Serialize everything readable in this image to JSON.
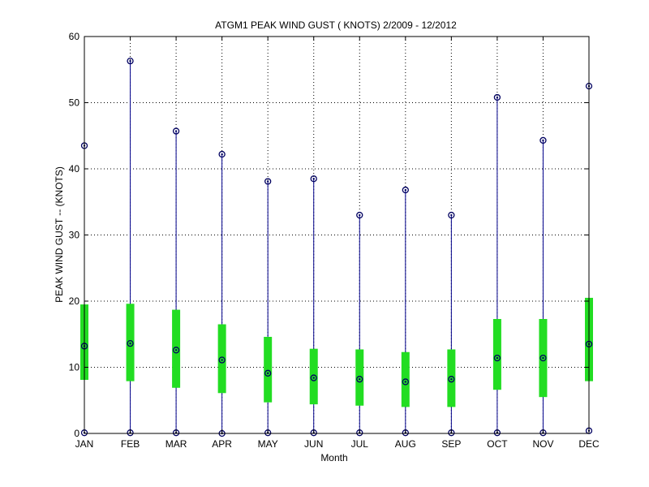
{
  "chart_data": {
    "type": "box",
    "title": "ATGM1  PEAK WIND GUST ( KNOTS) 2/2009 - 12/2012",
    "xlabel": "Month",
    "ylabel": "PEAK WIND GUST -- (KNOTS)",
    "categories": [
      "JAN",
      "FEB",
      "MAR",
      "APR",
      "MAY",
      "JUN",
      "JUL",
      "AUG",
      "SEP",
      "OCT",
      "NOV",
      "DEC"
    ],
    "ylim": [
      0,
      60
    ],
    "yticks": [
      0,
      10,
      20,
      30,
      40,
      50,
      60
    ],
    "grid": true,
    "series": [
      {
        "stat": "max",
        "values": [
          43.5,
          56.3,
          45.7,
          42.2,
          38.1,
          38.5,
          33.0,
          36.8,
          33.0,
          50.8,
          44.3,
          52.5
        ]
      },
      {
        "stat": "upper",
        "values": [
          19.5,
          19.6,
          18.7,
          16.5,
          14.6,
          12.8,
          12.7,
          12.3,
          12.7,
          17.3,
          17.3,
          20.5
        ]
      },
      {
        "stat": "mean",
        "values": [
          13.2,
          13.6,
          12.6,
          11.1,
          9.1,
          8.4,
          8.2,
          7.8,
          8.2,
          11.4,
          11.4,
          13.5
        ]
      },
      {
        "stat": "lower",
        "values": [
          8.1,
          7.9,
          6.9,
          6.1,
          4.7,
          4.4,
          4.2,
          4.0,
          4.0,
          6.6,
          5.5,
          7.9
        ]
      },
      {
        "stat": "min",
        "values": [
          0.1,
          0.1,
          0.1,
          0.0,
          0.1,
          0.1,
          0.1,
          0.1,
          0.1,
          0.1,
          0.1,
          0.4
        ]
      }
    ],
    "colors": {
      "whisker": "#00008b",
      "box": "#22dd22",
      "marker": "#000060",
      "grid": "#000000"
    }
  }
}
